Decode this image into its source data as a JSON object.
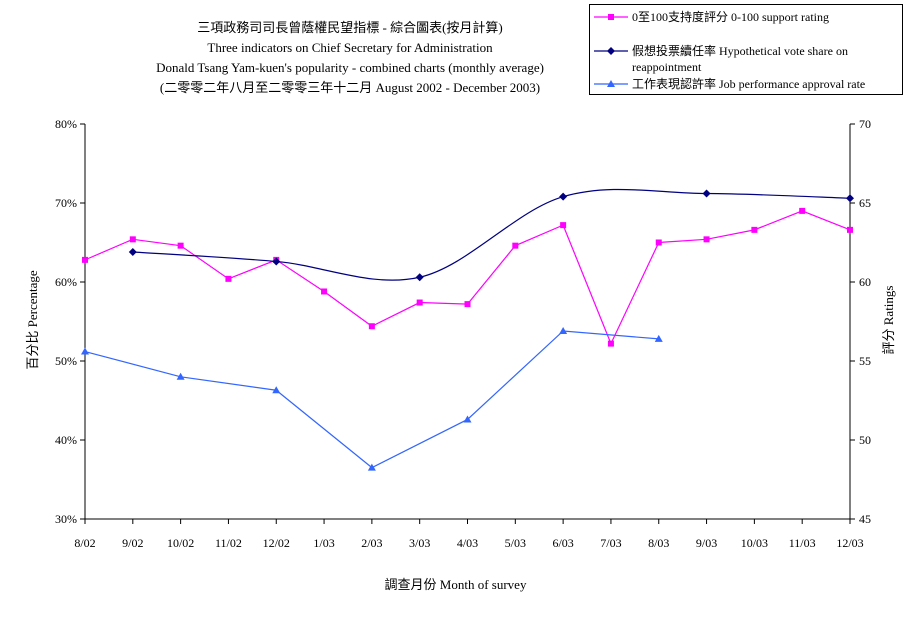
{
  "chart_data": {
    "type": "line",
    "title_lines": [
      "三項政務司司長曾蔭權民望指標 - 綜合圖表(按月計算)",
      "Three indicators on Chief Secretary for Administration",
      "Donald Tsang Yam-kuen's popularity - combined charts (monthly average)",
      "(二零零二年八月至二零零三年十二月 August 2002 - December 2003)"
    ],
    "xlabel": "調查月份 Month of survey",
    "ylabel_left": "百分比 Percentage",
    "ylabel_right": "評分 Ratings",
    "categories": [
      "8/02",
      "9/02",
      "10/02",
      "11/02",
      "12/02",
      "1/03",
      "2/03",
      "3/03",
      "4/03",
      "5/03",
      "6/03",
      "7/03",
      "8/03",
      "9/03",
      "10/03",
      "11/03",
      "12/03"
    ],
    "y_left": {
      "min": 30,
      "max": 80,
      "step": 10,
      "tick_labels": [
        "30%",
        "40%",
        "50%",
        "60%",
        "70%",
        "80%"
      ]
    },
    "y_right": {
      "min": 45,
      "max": 70,
      "step": 5,
      "tick_labels": [
        "45",
        "50",
        "55",
        "60",
        "65",
        "70"
      ]
    },
    "grid": false,
    "legend_position": "top-right",
    "series": [
      {
        "name": "0至100支持度評分 0-100 support rating",
        "axis": "right",
        "color": "#ff00ff",
        "marker": "square",
        "smooth": false,
        "values": [
          61.4,
          62.7,
          62.3,
          60.2,
          61.4,
          59.4,
          57.2,
          58.7,
          58.6,
          62.3,
          63.6,
          56.1,
          62.5,
          62.7,
          63.3,
          64.5,
          63.3
        ]
      },
      {
        "name": "假想投票續任率 Hypothetical vote share on reappointment",
        "axis": "left",
        "color": "#000080",
        "marker": "diamond",
        "smooth": true,
        "values": [
          null,
          63.8,
          null,
          null,
          62.6,
          null,
          null,
          60.6,
          null,
          null,
          70.8,
          null,
          null,
          71.2,
          null,
          null,
          70.6
        ]
      },
      {
        "name": "工作表現認許率 Job performance approval rate",
        "axis": "left",
        "color": "#3366ff",
        "marker": "triangle",
        "smooth": false,
        "values": [
          51.2,
          null,
          48.0,
          null,
          46.3,
          null,
          36.5,
          null,
          42.6,
          null,
          53.8,
          null,
          52.8,
          null,
          null,
          null,
          null
        ]
      }
    ]
  }
}
